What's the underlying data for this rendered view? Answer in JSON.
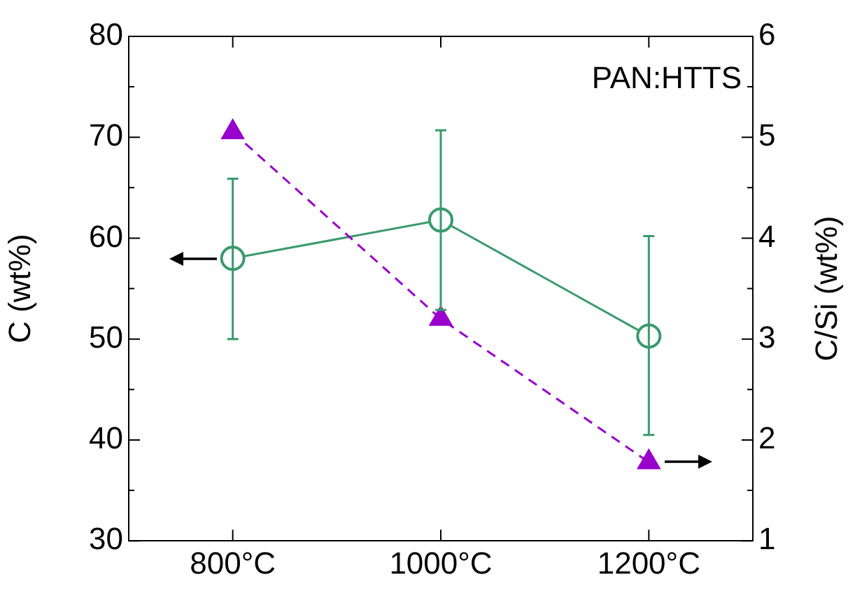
{
  "chart_data": {
    "type": "line",
    "ylabel": "C (wt%)",
    "y2label": "C/Si (wt%)",
    "categories": [
      "800°C",
      "1000°C",
      "1200°C"
    ],
    "series": [
      {
        "color": "#3a9a6e",
        "values": [
          58,
          61.8,
          50.3
        ],
        "errors": [
          [
            50,
            65.9
          ],
          [
            52.9,
            70.7
          ],
          [
            40.5,
            60.2
          ]
        ],
        "marker": "circle",
        "line_style": "solid"
      },
      {
        "axis": "y2",
        "color": "#9900cc",
        "values": [
          5.05,
          3.2,
          1.78
        ],
        "marker": "triangle",
        "line_style": "dashed"
      }
    ],
    "ylim": [
      30,
      80
    ],
    "yticks": [
      30,
      {
        "value": 35,
        "label": null
      },
      40,
      {
        "value": 45,
        "label": null
      },
      50,
      {
        "value": 55,
        "label": null
      },
      60,
      {
        "value": 65,
        "label": null
      },
      70,
      {
        "value": 75,
        "label": null
      },
      80
    ],
    "y2lim": [
      1,
      6
    ],
    "y2ticks": [
      1,
      {
        "value": 1.5,
        "label": null
      },
      2,
      {
        "value": 2.5,
        "label": null
      },
      3,
      {
        "value": 3.5,
        "label": null
      },
      4,
      {
        "value": 4.5,
        "label": null
      },
      5,
      {
        "value": 5.5,
        "label": null
      },
      6
    ],
    "annotations": [
      "PAN:HTTS"
    ],
    "grid": false,
    "legend": false
  }
}
